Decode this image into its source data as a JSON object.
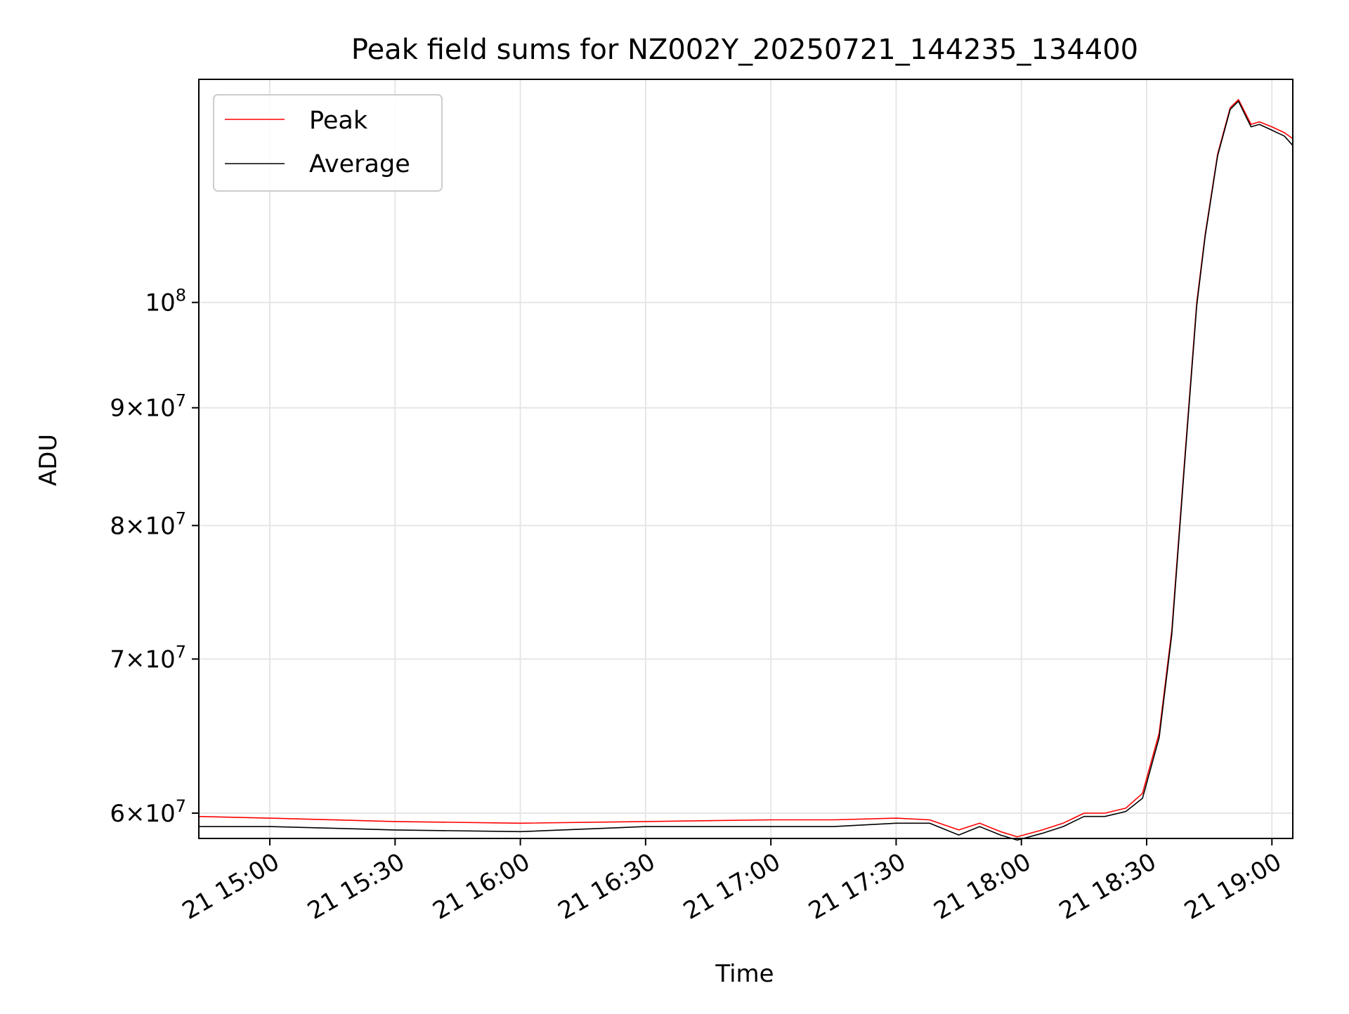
{
  "chart_data": {
    "type": "line",
    "title": "Peak field sums for NZ002Y_20250721_144235_134400",
    "xlabel": "Time",
    "ylabel": "ADU",
    "x_axis_type": "datetime",
    "xlim": [
      "2025-07-21 14:43",
      "2025-07-21 19:05"
    ],
    "ylim": [
      58500000,
      125000000
    ],
    "yscale": "log",
    "grid": true,
    "legend_position": "upper left",
    "x_ticks": [
      {
        "value": "2025-07-21 15:00",
        "label": "21 15:00"
      },
      {
        "value": "2025-07-21 15:30",
        "label": "21 15:30"
      },
      {
        "value": "2025-07-21 16:00",
        "label": "21 16:00"
      },
      {
        "value": "2025-07-21 16:30",
        "label": "21 16:30"
      },
      {
        "value": "2025-07-21 17:00",
        "label": "21 17:00"
      },
      {
        "value": "2025-07-21 17:30",
        "label": "21 17:30"
      },
      {
        "value": "2025-07-21 18:00",
        "label": "21 18:00"
      },
      {
        "value": "2025-07-21 18:30",
        "label": "21 18:30"
      },
      {
        "value": "2025-07-21 19:00",
        "label": "21 19:00"
      }
    ],
    "y_ticks": [
      {
        "value": 60000000,
        "mant": "6",
        "exp": "7"
      },
      {
        "value": 70000000,
        "mant": "7",
        "exp": "7"
      },
      {
        "value": 80000000,
        "mant": "8",
        "exp": "7"
      },
      {
        "value": 90000000,
        "mant": "9",
        "exp": "7"
      },
      {
        "value": 100000000,
        "mant": "",
        "exp": "8"
      }
    ],
    "series": [
      {
        "name": "Peak",
        "color": "#ff0000",
        "x": [
          "2025-07-21 14:43",
          "2025-07-21 15:00",
          "2025-07-21 15:30",
          "2025-07-21 16:00",
          "2025-07-21 16:30",
          "2025-07-21 17:00",
          "2025-07-21 17:15",
          "2025-07-21 17:30",
          "2025-07-21 17:38",
          "2025-07-21 17:45",
          "2025-07-21 17:50",
          "2025-07-21 17:55",
          "2025-07-21 17:59",
          "2025-07-21 18:05",
          "2025-07-21 18:10",
          "2025-07-21 18:15",
          "2025-07-21 18:20",
          "2025-07-21 18:25",
          "2025-07-21 18:29",
          "2025-07-21 18:33",
          "2025-07-21 18:36",
          "2025-07-21 18:39",
          "2025-07-21 18:42",
          "2025-07-21 18:44",
          "2025-07-21 18:47",
          "2025-07-21 18:50",
          "2025-07-21 18:52",
          "2025-07-21 18:54",
          "2025-07-21 18:55",
          "2025-07-21 18:57",
          "2025-07-21 19:00",
          "2025-07-21 19:03",
          "2025-07-21 19:05"
        ],
        "y": [
          59800000,
          59700000,
          59500000,
          59400000,
          59500000,
          59600000,
          59600000,
          59700000,
          59600000,
          59000000,
          59400000,
          58900000,
          58600000,
          59000000,
          59400000,
          60000000,
          60000000,
          60300000,
          61200000,
          65000000,
          72000000,
          85000000,
          100000000,
          107000000,
          116000000,
          121500000,
          122500000,
          120500000,
          119500000,
          119800000,
          119200000,
          118500000,
          117800000
        ]
      },
      {
        "name": "Average",
        "color": "#000000",
        "x": [
          "2025-07-21 14:43",
          "2025-07-21 15:00",
          "2025-07-21 15:30",
          "2025-07-21 16:00",
          "2025-07-21 16:30",
          "2025-07-21 17:00",
          "2025-07-21 17:15",
          "2025-07-21 17:30",
          "2025-07-21 17:38",
          "2025-07-21 17:45",
          "2025-07-21 17:50",
          "2025-07-21 17:55",
          "2025-07-21 17:59",
          "2025-07-21 18:05",
          "2025-07-21 18:10",
          "2025-07-21 18:15",
          "2025-07-21 18:20",
          "2025-07-21 18:25",
          "2025-07-21 18:29",
          "2025-07-21 18:33",
          "2025-07-21 18:36",
          "2025-07-21 18:39",
          "2025-07-21 18:42",
          "2025-07-21 18:44",
          "2025-07-21 18:47",
          "2025-07-21 18:50",
          "2025-07-21 18:52",
          "2025-07-21 18:54",
          "2025-07-21 18:55",
          "2025-07-21 18:57",
          "2025-07-21 19:00",
          "2025-07-21 19:03",
          "2025-07-21 19:05"
        ],
        "y": [
          59200000,
          59200000,
          59000000,
          58900000,
          59200000,
          59200000,
          59200000,
          59400000,
          59400000,
          58700000,
          59200000,
          58700000,
          58400000,
          58800000,
          59200000,
          59800000,
          59800000,
          60100000,
          60900000,
          64700000,
          71700000,
          84700000,
          99700000,
          106800000,
          115800000,
          121300000,
          122300000,
          120200000,
          119200000,
          119500000,
          118800000,
          118100000,
          117000000
        ]
      }
    ]
  }
}
